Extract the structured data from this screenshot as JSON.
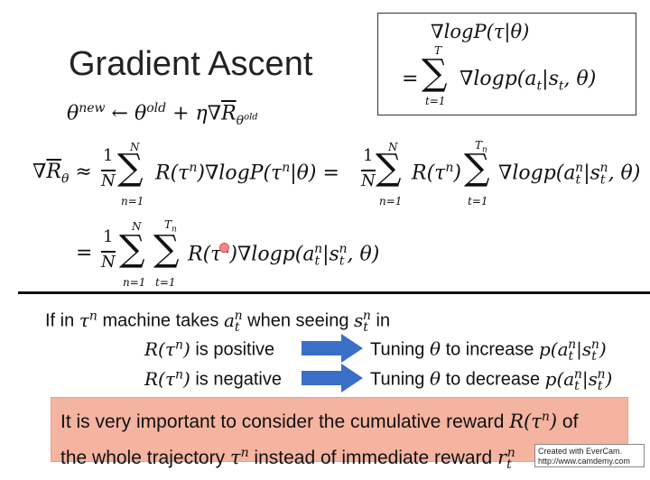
{
  "slide": {
    "title": "Gradient Ascent",
    "update_rule": "θ^new ← θ^old + η∇R̄_θold",
    "box": {
      "line1": "∇logP(τ|θ)",
      "line2": "= Σ_{t=1}^{T} ∇logp(a_t|s_t, θ)",
      "sum_top": "T",
      "sum_bottom": "t=1"
    },
    "gradient_line": "∇R̄_θ ≈ (1/N) Σ_{n=1}^{N} R(τ^n)∇logP(τ^n|θ) = (1/N) Σ_{n=1}^{N} R(τ^n) Σ_{t=1}^{T_n} ∇logp(a_t^n|s_t^n, θ)",
    "final_line": "= (1/N) Σ_{n=1}^{N} Σ_{t=1}^{T_n} R(τ^n)∇logp(a_t^n|s_t^n, θ)",
    "condition_text": "If in τ^n machine takes a_t^n when seeing s_t^n in",
    "positive_case": "R(τ^n) is positive",
    "positive_action": "Tuning θ to increase p(a_t^n|s_t^n)",
    "negative_case": "R(τ^n) is negative",
    "negative_action": "Tuning θ to decrease p(a_t^n|s_t^n)",
    "banner_line1": "It is very important to consider the cumulative reward R(τ^n) of",
    "banner_line2": "the whole trajectory τ^n instead of immediate reward r_t^n",
    "watermark_line1": "Created with EverCam.",
    "watermark_line2": "http://www.camdemy.com",
    "colors": {
      "arrow": "#3a6fc7",
      "banner": "#f4b4a0",
      "divider": "#111111"
    }
  }
}
